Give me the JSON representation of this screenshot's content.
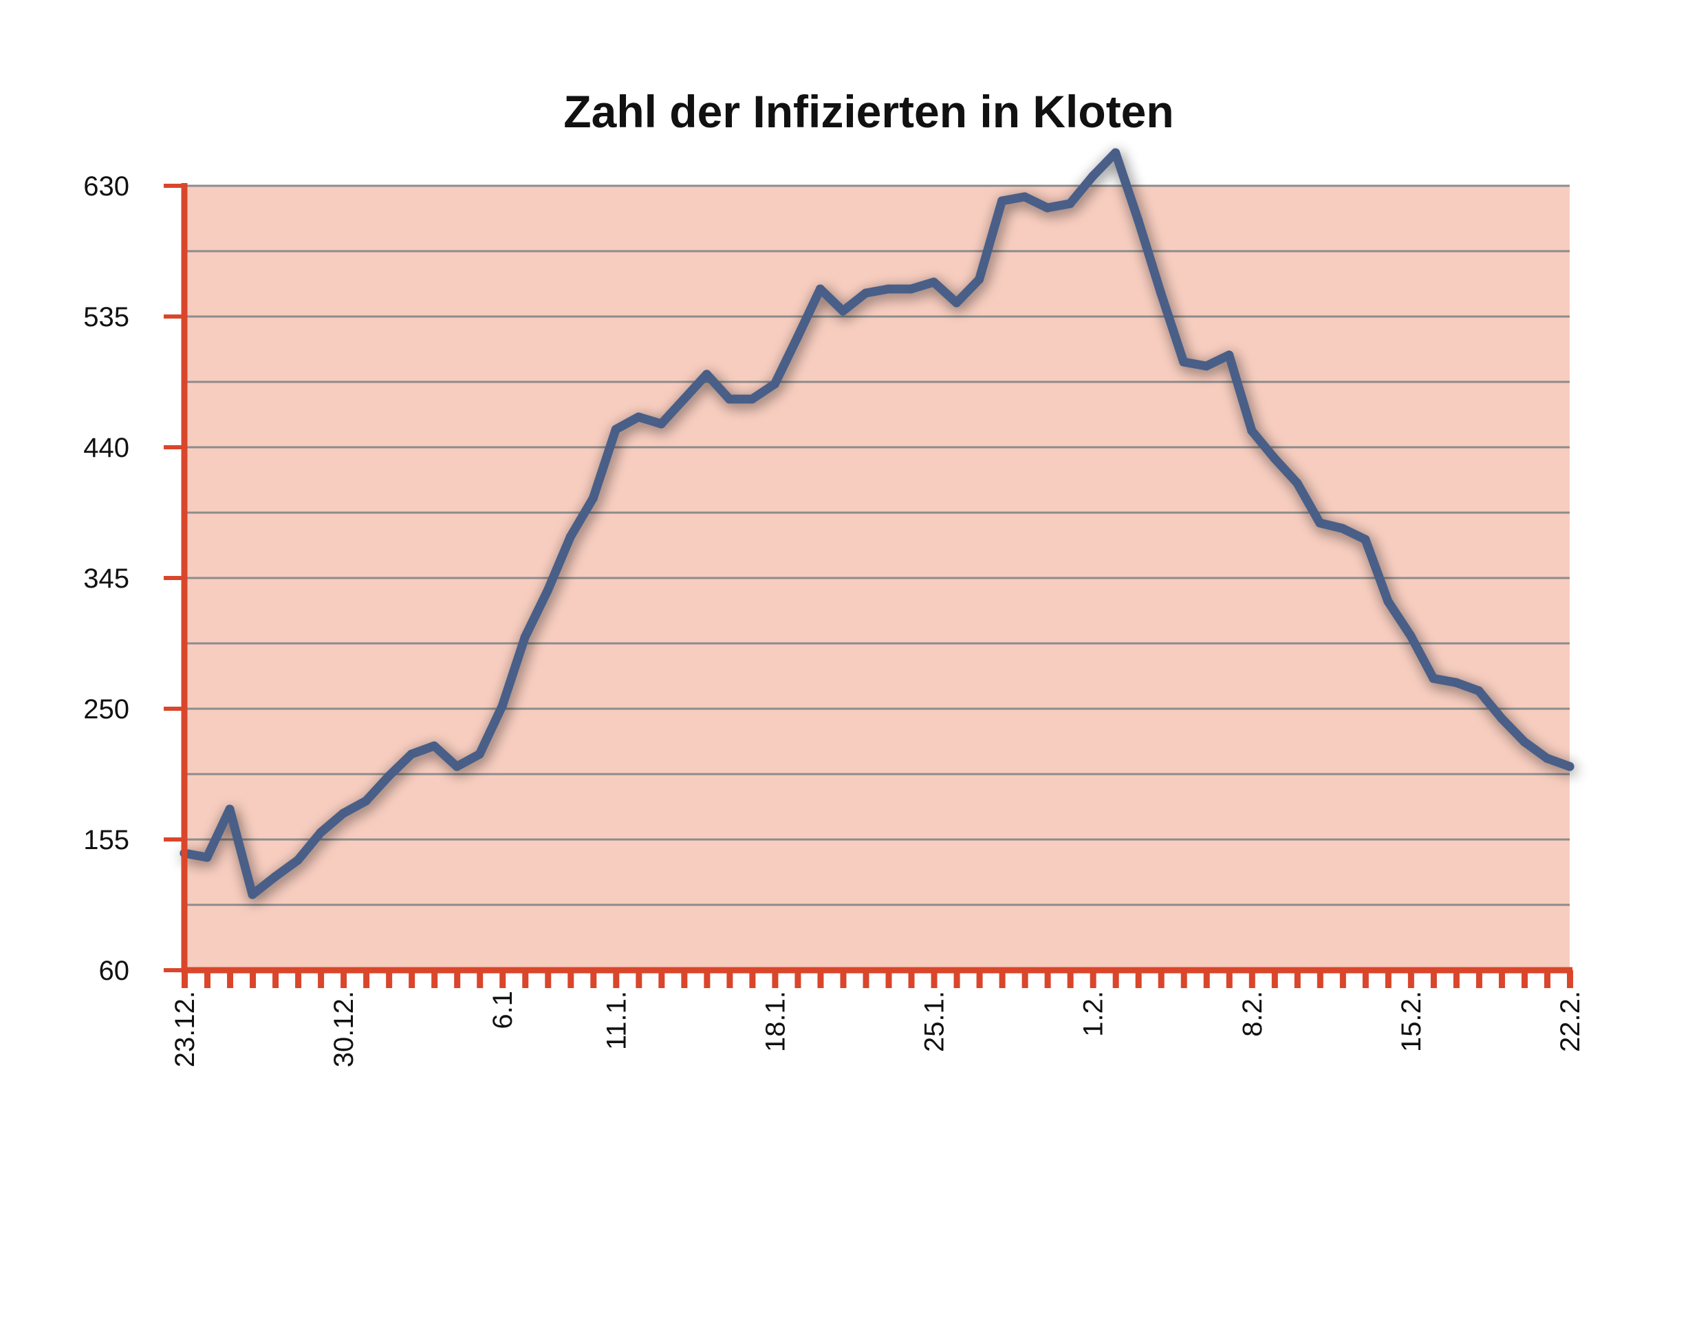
{
  "chart_data": {
    "type": "line",
    "title": "Zahl der Infizierten in Kloten",
    "xlabel": "",
    "ylabel": "",
    "ylim": [
      60,
      630
    ],
    "yticks": [
      60,
      155,
      250,
      345,
      440,
      535,
      630
    ],
    "minor_gridlines": [
      107.5,
      202.5,
      297.5,
      392.5,
      487.5,
      582.5
    ],
    "grid": true,
    "legend": "none",
    "xtick_labels": [
      {
        "label": "23.12.",
        "day": 0
      },
      {
        "label": "30.12.",
        "day": 7
      },
      {
        "label": "6.1",
        "day": 14
      },
      {
        "label": "11.1.",
        "day": 19
      },
      {
        "label": "18.1.",
        "day": 26
      },
      {
        "label": "25.1.",
        "day": 33
      },
      {
        "label": "1.2.",
        "day": 40
      },
      {
        "label": "8.2.",
        "day": 47
      },
      {
        "label": "15.2.",
        "day": 54
      },
      {
        "label": "22.2.",
        "day": 61
      }
    ],
    "x_day_count": 62,
    "series": [
      {
        "values": [
          145,
          142,
          177,
          115,
          128,
          140,
          160,
          174,
          183,
          201,
          217,
          223,
          208,
          217,
          252,
          302,
          336,
          375,
          403,
          453,
          462,
          457,
          475,
          493,
          475,
          475,
          486,
          520,
          555,
          539,
          552,
          555,
          555,
          560,
          545,
          562,
          619,
          622,
          614,
          617,
          637,
          654,
          605,
          552,
          502,
          499,
          507,
          452,
          432,
          414,
          385,
          381,
          373,
          328,
          303,
          272,
          269,
          263,
          243,
          226,
          214,
          208
        ]
      }
    ]
  },
  "colors": {
    "plot_background": "#f7cdbf",
    "axis": "#d9462b",
    "gridline": "#8c8c8c",
    "line": "#485e87",
    "line_shadow": "#333333"
  }
}
